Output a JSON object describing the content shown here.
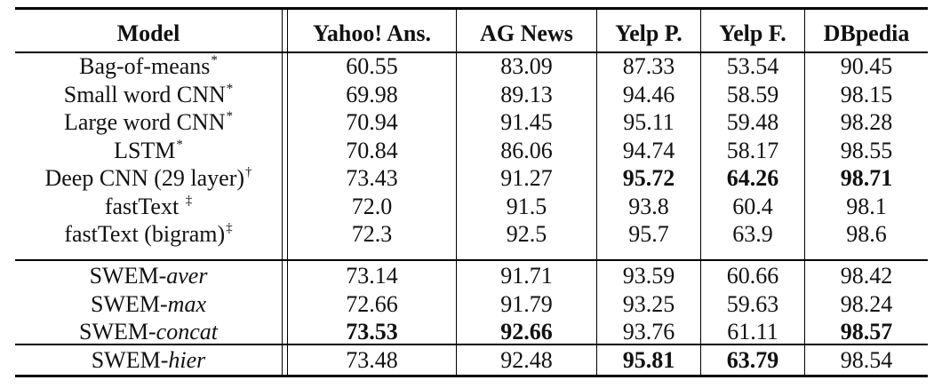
{
  "table": {
    "columns": [
      "Model",
      "Yahoo! Ans.",
      "AG News",
      "Yelp P.",
      "Yelp F.",
      "DBpedia"
    ],
    "rows": [
      {
        "model": "Bag-of-means",
        "mark": "*",
        "values": [
          "60.55",
          "83.09",
          "87.33",
          "53.54",
          "90.45"
        ],
        "bold": [
          false,
          false,
          false,
          false,
          false
        ]
      },
      {
        "model": "Small word CNN",
        "mark": "*",
        "values": [
          "69.98",
          "89.13",
          "94.46",
          "58.59",
          "98.15"
        ],
        "bold": [
          false,
          false,
          false,
          false,
          false
        ]
      },
      {
        "model": "Large word CNN",
        "mark": "*",
        "values": [
          "70.94",
          "91.45",
          "95.11",
          "59.48",
          "98.28"
        ],
        "bold": [
          false,
          false,
          false,
          false,
          false
        ]
      },
      {
        "model": "LSTM",
        "mark": "*",
        "values": [
          "70.84",
          "86.06",
          "94.74",
          "58.17",
          "98.55"
        ],
        "bold": [
          false,
          false,
          false,
          false,
          false
        ]
      },
      {
        "model": "Deep CNN (29 layer)",
        "mark": "†",
        "values": [
          "73.43",
          "91.27",
          "95.72",
          "64.26",
          "98.71"
        ],
        "bold": [
          false,
          false,
          true,
          true,
          true
        ]
      },
      {
        "model": "fastText ",
        "mark": "‡",
        "values": [
          "72.0",
          "91.5",
          "93.8",
          "60.4",
          "98.1"
        ],
        "bold": [
          false,
          false,
          false,
          false,
          false
        ]
      },
      {
        "model": "fastText (bigram)",
        "mark": "‡",
        "values": [
          "72.3",
          "92.5",
          "95.7",
          "63.9",
          "98.6"
        ],
        "bold": [
          false,
          false,
          false,
          false,
          false
        ]
      },
      {
        "model_prefix": "SWEM-",
        "model_italic": "aver",
        "values": [
          "73.14",
          "91.71",
          "93.59",
          "60.66",
          "98.42"
        ],
        "bold": [
          false,
          false,
          false,
          false,
          false
        ]
      },
      {
        "model_prefix": "SWEM-",
        "model_italic": "max",
        "values": [
          "72.66",
          "91.79",
          "93.25",
          "59.63",
          "98.24"
        ],
        "bold": [
          false,
          false,
          false,
          false,
          false
        ]
      },
      {
        "model_prefix": "SWEM-",
        "model_italic": "concat",
        "values": [
          "73.53",
          "92.66",
          "93.76",
          "61.11",
          "98.57"
        ],
        "bold": [
          true,
          true,
          false,
          false,
          true
        ]
      },
      {
        "model_prefix": "SWEM-",
        "model_italic": "hier",
        "values": [
          "73.48",
          "92.48",
          "95.81",
          "63.79",
          "98.54"
        ],
        "bold": [
          false,
          false,
          true,
          true,
          false
        ]
      }
    ]
  }
}
